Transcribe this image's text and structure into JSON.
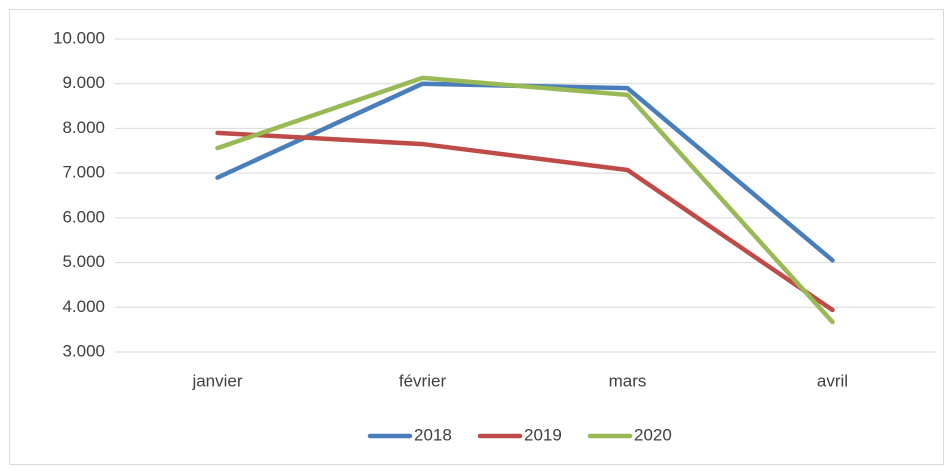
{
  "chart_data": {
    "type": "line",
    "categories": [
      "janvier",
      "février",
      "mars",
      "avril"
    ],
    "series": [
      {
        "name": "2018",
        "color": "#4a7ebb",
        "values": [
          6900,
          9000,
          8900,
          5050
        ]
      },
      {
        "name": "2019",
        "color": "#be4b48",
        "values": [
          7900,
          7650,
          7070,
          3940
        ]
      },
      {
        "name": "2020",
        "color": "#98b954",
        "values": [
          7560,
          9130,
          8750,
          3670
        ]
      }
    ],
    "ylim": [
      3000,
      10000
    ],
    "yticks": [
      {
        "value": 3000,
        "label": "3.000"
      },
      {
        "value": 4000,
        "label": "4.000"
      },
      {
        "value": 5000,
        "label": "5.000"
      },
      {
        "value": 6000,
        "label": "6.000"
      },
      {
        "value": 7000,
        "label": "7.000"
      },
      {
        "value": 8000,
        "label": "8.000"
      },
      {
        "value": 9000,
        "label": "9.000"
      },
      {
        "value": 10000,
        "label": "10.000"
      }
    ],
    "grid": true,
    "legend": "bottom"
  }
}
